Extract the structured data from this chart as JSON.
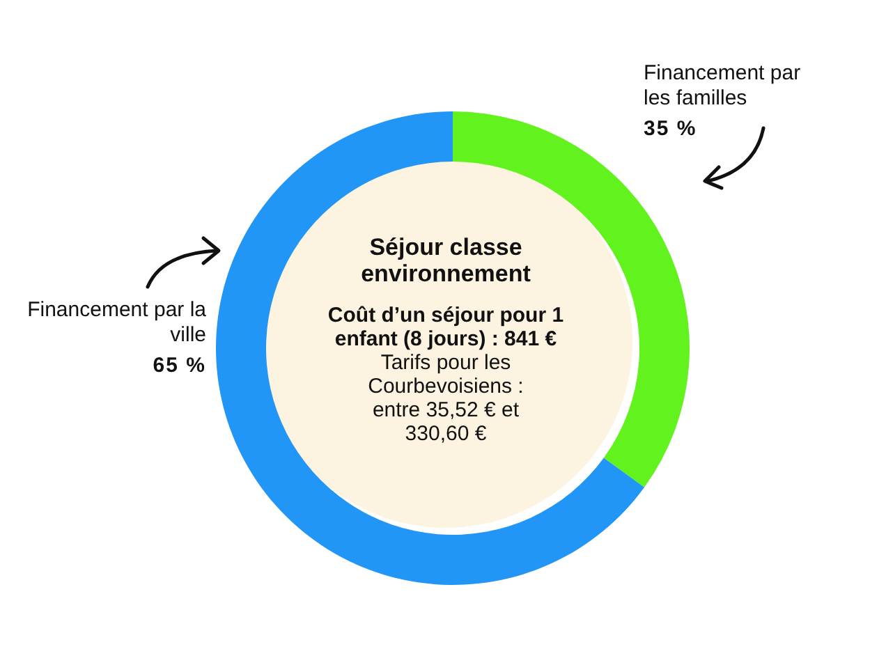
{
  "chart_data": {
    "type": "donut",
    "title": "Séjour classe environnement",
    "categories": [
      "Financement par les familles",
      "Financement par la ville"
    ],
    "values": [
      35,
      65
    ],
    "colors": [
      "#62f21e",
      "#2196f6"
    ],
    "value_labels": [
      "35 %",
      "65 %"
    ],
    "annotations": [
      "Coût d’un séjour pour 1 enfant (8 jours) : 841 €",
      "Tarifs pour les Courbevoisiens : entre 35,52 € et 330,60 €"
    ],
    "legend": false
  }
}
